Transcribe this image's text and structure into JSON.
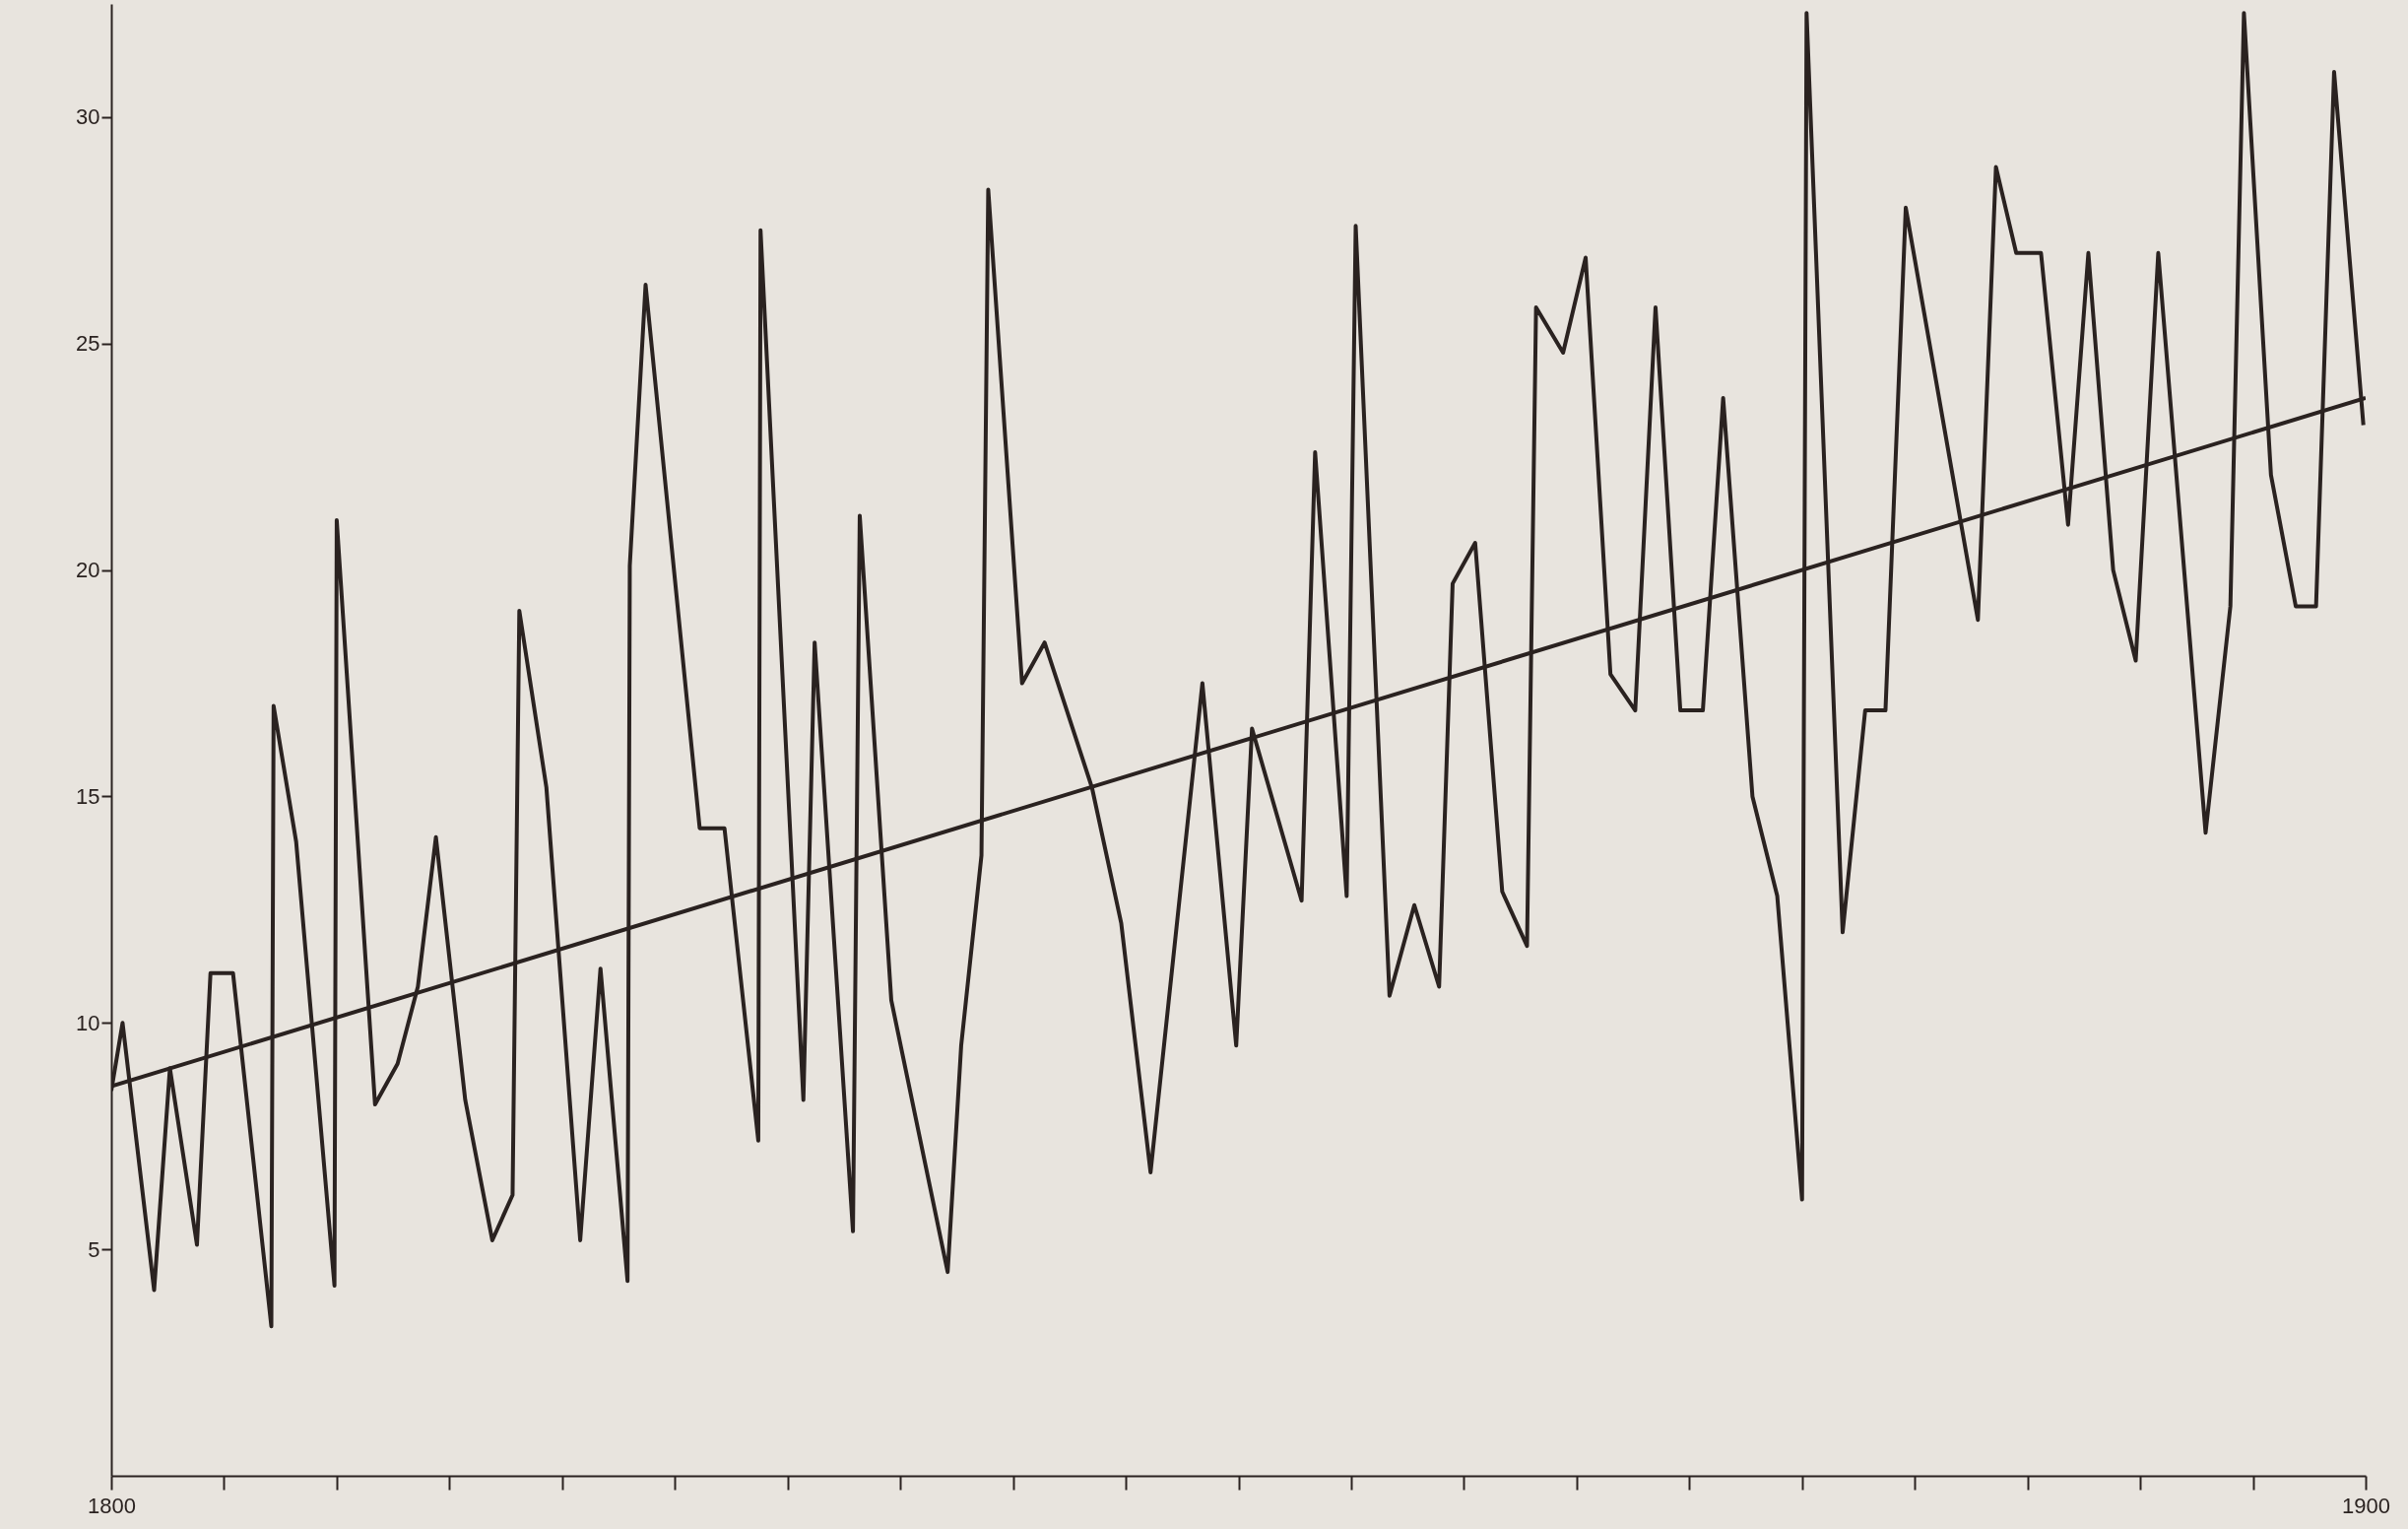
{
  "chart_data": {
    "type": "line",
    "xlim": [
      1800,
      1900
    ],
    "ylim": [
      0,
      32.5
    ],
    "xticks": [
      1800,
      {
        "value": 1805,
        "label": null
      },
      {
        "value": 1810,
        "label": null
      },
      {
        "value": 1815,
        "label": null
      },
      {
        "value": 1820,
        "label": null
      },
      {
        "value": 1825,
        "label": null
      },
      {
        "value": 1830,
        "label": null
      },
      {
        "value": 1835,
        "label": null
      },
      {
        "value": 1840,
        "label": null
      },
      {
        "value": 1845,
        "label": null
      },
      {
        "value": 1850,
        "label": null
      },
      {
        "value": 1855,
        "label": null
      },
      {
        "value": 1860,
        "label": null
      },
      {
        "value": 1865,
        "label": null
      },
      {
        "value": 1870,
        "label": null
      },
      {
        "value": 1875,
        "label": null
      },
      {
        "value": 1880,
        "label": null
      },
      {
        "value": 1885,
        "label": null
      },
      {
        "value": 1890,
        "label": null
      },
      {
        "value": 1895,
        "label": null
      },
      1900
    ],
    "yticks": [
      5,
      10,
      15,
      20,
      25,
      30
    ],
    "grid": false,
    "series": [
      {
        "color": "#2a2220",
        "x": [
          1800,
          1800.5,
          1801.9,
          1802.6,
          1803.8,
          1804.4,
          1805.4,
          1807.1,
          1807.2,
          1808.2,
          1809.9,
          1810,
          1811.7,
          1812.7,
          1813.6,
          1814.4,
          1815.7,
          1816.9,
          1817.8,
          1818.1,
          1819.3,
          1820.8,
          1821.7,
          1822.9,
          1823,
          1823.7,
          1826.1,
          1827.2,
          1828.7,
          1828.8,
          1830.7,
          1831.2,
          1832.9,
          1833.2,
          1834.6,
          1837.1,
          1837.7,
          1838.6,
          1838.9,
          1840.4,
          1841.4,
          1843.5,
          1844.8,
          1846.1,
          1848.4,
          1849.9,
          1850.6,
          1852.8,
          1853.4,
          1854.8,
          1855.2,
          1856.7,
          1857.8,
          1858.9,
          1859.5,
          1860.5,
          1861.7,
          1862.8,
          1863.2,
          1864.4,
          1865.4,
          1866.5,
          1867.6,
          1868.5,
          1869.6,
          1870.6,
          1871.5,
          1872.8,
          1873.9,
          1875,
          1875.2,
          1876.8,
          1877.8,
          1878.7,
          1879.6,
          1882.8,
          1883.6,
          1884.5,
          1885.6,
          1886.8,
          1887.7,
          1888.8,
          1889.8,
          1890.8,
          1892.9,
          1894,
          1894.6,
          1895.8,
          1896.9,
          1897.8,
          1898.6,
          1899.9
        ],
        "values": [
          8.5,
          10,
          4.1,
          9,
          5.1,
          11.1,
          11.1,
          3.3,
          17,
          14,
          4.2,
          21.1,
          8.2,
          9.1,
          10.8,
          14.1,
          8.3,
          5.2,
          6.2,
          19.1,
          15.2,
          5.2,
          11.2,
          4.3,
          20.1,
          26.3,
          14.3,
          14.3,
          7.4,
          27.5,
          8.3,
          18.4,
          5.4,
          21.2,
          10.5,
          4.5,
          9.5,
          13.7,
          28.4,
          17.5,
          18.4,
          15.2,
          12.2,
          6.7,
          17.5,
          9.5,
          16.5,
          12.7,
          22.6,
          12.8,
          27.6,
          10.6,
          12.6,
          10.8,
          19.7,
          20.6,
          12.9,
          11.7,
          25.8,
          24.8,
          26.9,
          17.7,
          16.9,
          25.8,
          16.9,
          16.9,
          23.8,
          15,
          12.8,
          6.1,
          32.3,
          12,
          16.9,
          16.9,
          28,
          18.9,
          28.9,
          27,
          27,
          21,
          27,
          20,
          18,
          27,
          14.2,
          19.2,
          32.3,
          22.1,
          19.2,
          19.2,
          31,
          23.2
        ]
      },
      {
        "type": "line",
        "color": "#2a2220",
        "x": [
          1800,
          1900
        ],
        "values": [
          8.6,
          23.8
        ]
      }
    ]
  }
}
